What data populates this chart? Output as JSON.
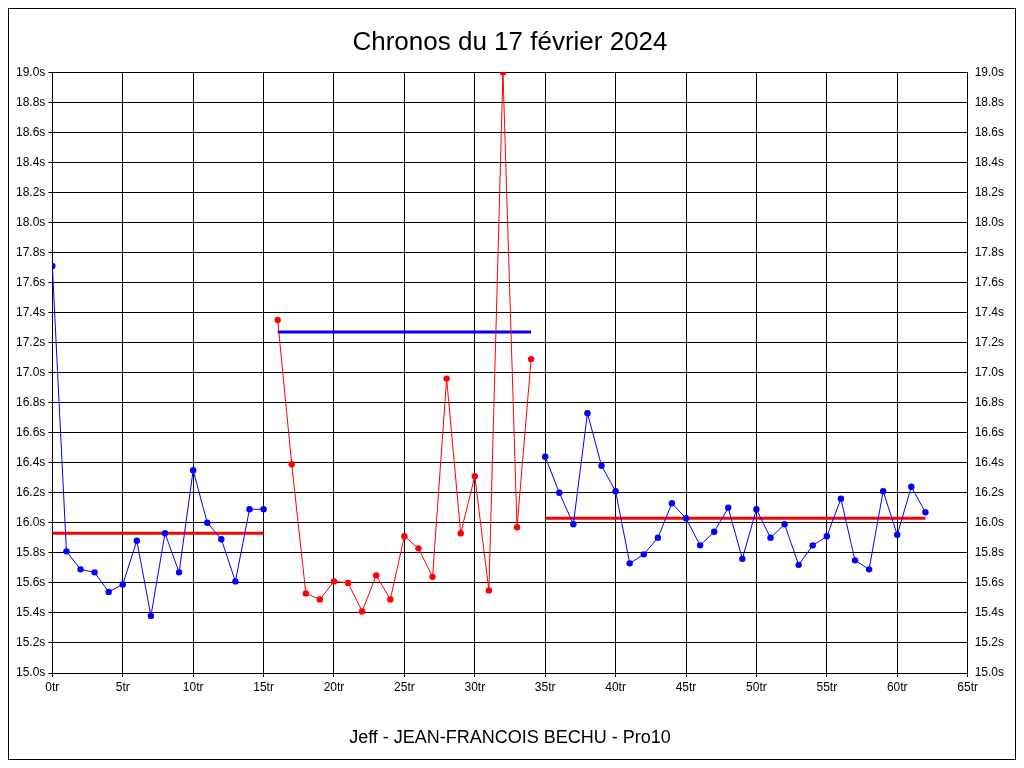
{
  "chart_data": {
    "type": "line",
    "title": "Chronos du 17 février 2024",
    "xlabel": "Jeff - JEAN-FRANCOIS BECHU - Pro10",
    "xlim": [
      0,
      65
    ],
    "xticks": [
      {
        "value": 0,
        "label": "0tr"
      },
      {
        "value": 5,
        "label": "5tr"
      },
      {
        "value": 10,
        "label": "10tr"
      },
      {
        "value": 15,
        "label": "15tr"
      },
      {
        "value": 20,
        "label": "20tr"
      },
      {
        "value": 25,
        "label": "25tr"
      },
      {
        "value": 30,
        "label": "30tr"
      },
      {
        "value": 35,
        "label": "35tr"
      },
      {
        "value": 40,
        "label": "40tr"
      },
      {
        "value": 45,
        "label": "45tr"
      },
      {
        "value": 50,
        "label": "50tr"
      },
      {
        "value": 55,
        "label": "55tr"
      },
      {
        "value": 60,
        "label": "60tr"
      },
      {
        "value": 65,
        "label": "65tr"
      }
    ],
    "ylim": [
      15,
      19
    ],
    "yticks": [
      {
        "value": 15,
        "label": "15.0s"
      },
      {
        "value": 15.2,
        "label": "15.2s"
      },
      {
        "value": 15.4,
        "label": "15.4s"
      },
      {
        "value": 15.6,
        "label": "15.6s"
      },
      {
        "value": 15.8,
        "label": "15.8s"
      },
      {
        "value": 16,
        "label": "16.0s"
      },
      {
        "value": 16.2,
        "label": "16.2s"
      },
      {
        "value": 16.4,
        "label": "16.4s"
      },
      {
        "value": 16.6,
        "label": "16.6s"
      },
      {
        "value": 16.8,
        "label": "16.8s"
      },
      {
        "value": 17,
        "label": "17.0s"
      },
      {
        "value": 17.2,
        "label": "17.2s"
      },
      {
        "value": 17.4,
        "label": "17.4s"
      },
      {
        "value": 17.6,
        "label": "17.6s"
      },
      {
        "value": 17.8,
        "label": "17.8s"
      },
      {
        "value": 18,
        "label": "18.0s"
      },
      {
        "value": 18.2,
        "label": "18.2s"
      },
      {
        "value": 18.4,
        "label": "18.4s"
      },
      {
        "value": 18.6,
        "label": "18.6s"
      },
      {
        "value": 18.8,
        "label": "18.8s"
      },
      {
        "value": 19,
        "label": "19.0s"
      }
    ],
    "y2lim": [
      15,
      19
    ],
    "y2ticks": [
      {
        "value": 15,
        "label": "15.0s"
      },
      {
        "value": 15.2,
        "label": "15.2s"
      },
      {
        "value": 15.4,
        "label": "15.4s"
      },
      {
        "value": 15.6,
        "label": "15.6s"
      },
      {
        "value": 15.8,
        "label": "15.8s"
      },
      {
        "value": 16,
        "label": "16.0s"
      },
      {
        "value": 16.2,
        "label": "16.2s"
      },
      {
        "value": 16.4,
        "label": "16.4s"
      },
      {
        "value": 16.6,
        "label": "16.6s"
      },
      {
        "value": 16.8,
        "label": "16.8s"
      },
      {
        "value": 17,
        "label": "17.0s"
      },
      {
        "value": 17.2,
        "label": "17.2s"
      },
      {
        "value": 17.4,
        "label": "17.4s"
      },
      {
        "value": 17.6,
        "label": "17.6s"
      },
      {
        "value": 17.8,
        "label": "17.8s"
      },
      {
        "value": 18,
        "label": "18.0s"
      },
      {
        "value": 18.2,
        "label": "18.2s"
      },
      {
        "value": 18.4,
        "label": "18.4s"
      },
      {
        "value": 18.6,
        "label": "18.6s"
      },
      {
        "value": 18.8,
        "label": "18.8s"
      },
      {
        "value": 19,
        "label": "19.0s"
      }
    ],
    "grid": true,
    "legend": false,
    "marker": "circle",
    "line_style": "solid",
    "series": [
      {
        "color": "#0000ff",
        "x": [
          0,
          1,
          2,
          3,
          4,
          5,
          6,
          7,
          8,
          9,
          10,
          11,
          12,
          13,
          14,
          15
        ],
        "values": [
          17.71,
          15.81,
          15.69,
          15.67,
          15.54,
          15.59,
          15.88,
          15.38,
          15.93,
          15.67,
          16.35,
          16.0,
          15.89,
          15.61,
          16.09,
          16.09
        ]
      },
      {
        "color": "#ff0000",
        "x": [
          16,
          17,
          18,
          19,
          20,
          21,
          22,
          23,
          24,
          25,
          26,
          27,
          28,
          29,
          30,
          31,
          32,
          33,
          34
        ],
        "values": [
          17.35,
          16.39,
          15.53,
          15.49,
          15.61,
          15.6,
          15.41,
          15.65,
          15.49,
          15.91,
          15.83,
          15.64,
          16.96,
          15.93,
          16.31,
          15.55,
          19.0,
          15.97,
          17.09
        ]
      },
      {
        "color": "#0000ff",
        "x": [
          35,
          36,
          37,
          38,
          39,
          40,
          41,
          42,
          43,
          44,
          45,
          46,
          47,
          48,
          49,
          50,
          51,
          52,
          53,
          54,
          55,
          56,
          57,
          58,
          59,
          60,
          61,
          62
        ],
        "values": [
          16.44,
          16.2,
          15.99,
          16.73,
          16.38,
          16.21,
          15.73,
          15.79,
          15.9,
          16.13,
          16.03,
          15.85,
          15.94,
          16.1,
          15.76,
          16.09,
          15.9,
          15.99,
          15.72,
          15.85,
          15.91,
          16.16,
          15.75,
          15.69,
          16.21,
          15.92,
          16.24,
          16.07
        ]
      },
      {
        "type": "line",
        "marker": "none",
        "color": "#ff0000",
        "x": [
          0,
          15
        ],
        "values": [
          15.93,
          15.93
        ]
      },
      {
        "type": "line",
        "marker": "none",
        "color": "#0000ff",
        "x": [
          16,
          34
        ],
        "values": [
          17.27,
          17.27
        ]
      },
      {
        "type": "line",
        "marker": "none",
        "color": "#ff0000",
        "x": [
          35,
          62
        ],
        "values": [
          16.03,
          16.03
        ]
      }
    ]
  }
}
